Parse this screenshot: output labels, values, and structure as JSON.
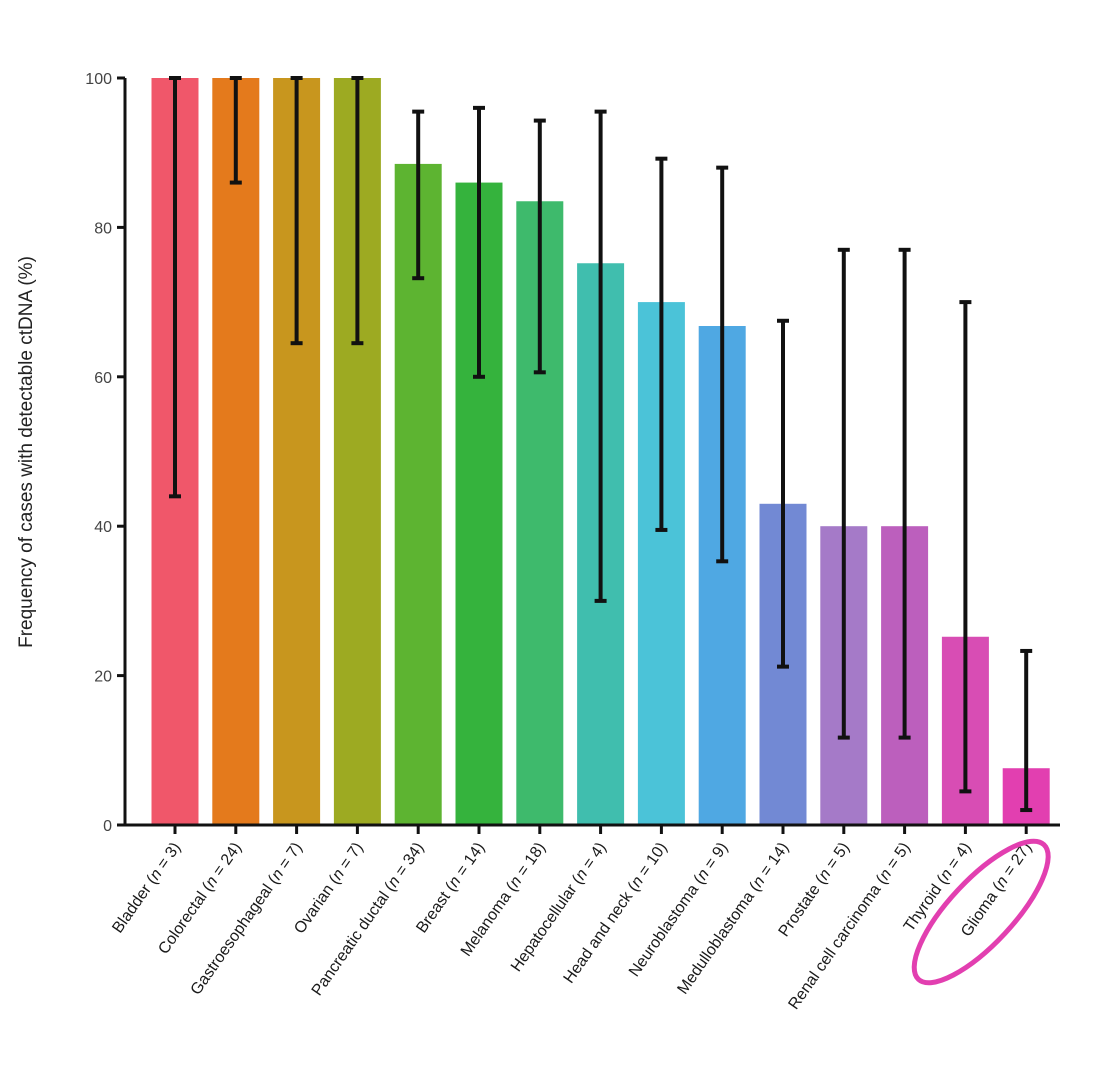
{
  "chart_data": {
    "type": "bar",
    "title": "",
    "xlabel": "",
    "ylabel": "Frequency of cases with detectable ctDNA (%)",
    "ylim": [
      0,
      100
    ],
    "yticks": [
      0,
      20,
      40,
      60,
      80,
      100
    ],
    "grid": false,
    "series": [
      {
        "name": "Frequency of cases with detectable ctDNA",
        "points": [
          {
            "name": "Bladder",
            "n": "3",
            "value": 100,
            "err_low": 44,
            "err_high": 100,
            "color": "#f0576a"
          },
          {
            "name": "Colorectal",
            "n": "24",
            "value": 100,
            "err_low": 86,
            "err_high": 100,
            "color": "#e47a1c"
          },
          {
            "name": "Gastroesophageal",
            "n": "7",
            "value": 100,
            "err_low": 64.5,
            "err_high": 100,
            "color": "#c8961e"
          },
          {
            "name": "Ovarian",
            "n": "7",
            "value": 100,
            "err_low": 64.5,
            "err_high": 100,
            "color": "#9daa22"
          },
          {
            "name": "Pancreatic ductal",
            "n": "34",
            "value": 88.5,
            "err_low": 73.2,
            "err_high": 95.5,
            "color": "#5db431"
          },
          {
            "name": "Breast",
            "n": "14",
            "value": 86,
            "err_low": 60,
            "err_high": 96,
            "color": "#35b33d"
          },
          {
            "name": "Melanoma",
            "n": "18",
            "value": 83.5,
            "err_low": 60.6,
            "err_high": 94.3,
            "color": "#3eba6c"
          },
          {
            "name": "Hepatocellular",
            "n": "4",
            "value": 75.2,
            "err_low": 30,
            "err_high": 95.5,
            "color": "#40beae"
          },
          {
            "name": "Head and neck",
            "n": "10",
            "value": 70,
            "err_low": 39.5,
            "err_high": 89.2,
            "color": "#4bc3d8"
          },
          {
            "name": "Neuroblastoma",
            "n": "9",
            "value": 66.8,
            "err_low": 35.3,
            "err_high": 88,
            "color": "#4fa8e3"
          },
          {
            "name": "Medulloblastoma",
            "n": "14",
            "value": 43,
            "err_low": 21.2,
            "err_high": 67.5,
            "color": "#7289d4"
          },
          {
            "name": "Prostate",
            "n": "5",
            "value": 40,
            "err_low": 11.7,
            "err_high": 77,
            "color": "#a57ac8"
          },
          {
            "name": "Renal cell carcinoma",
            "n": "5",
            "value": 40,
            "err_low": 11.7,
            "err_high": 77,
            "color": "#bc5fbd"
          },
          {
            "name": "Thyroid",
            "n": "4",
            "value": 25.2,
            "err_low": 4.5,
            "err_high": 70,
            "color": "#d84db4"
          },
          {
            "name": "Glioma",
            "n": "27",
            "value": 7.6,
            "err_low": 2,
            "err_high": 23.3,
            "color": "#e23fb0"
          }
        ]
      }
    ],
    "highlight": {
      "category": "Glioma",
      "shape": "ellipse",
      "color": "#e23fb0"
    }
  }
}
